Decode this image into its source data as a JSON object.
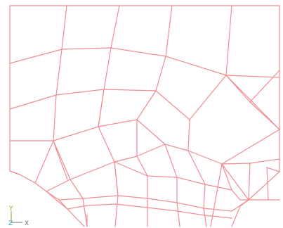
{
  "triad": {
    "y_label": "Y",
    "z_label": "Z",
    "x_label": "X",
    "colors": {
      "y": "#9a9a2a",
      "z": "#2aa0a0",
      "x": "#707070"
    }
  },
  "mesh": {
    "line_color": "#f08c92"
  }
}
